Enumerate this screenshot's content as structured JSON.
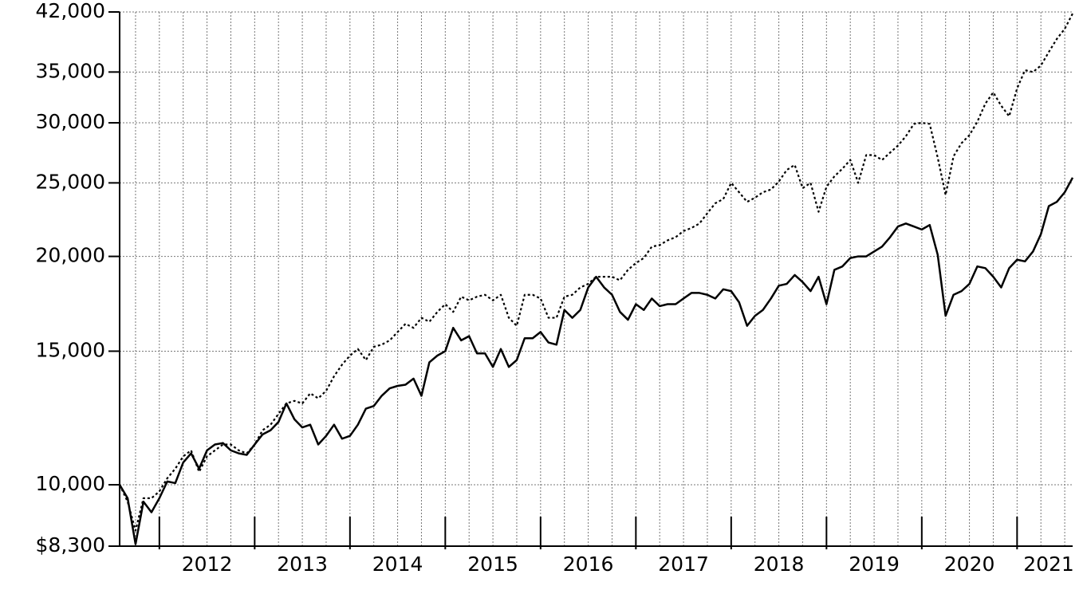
{
  "chart_data": {
    "type": "line",
    "yscale": "log",
    "grid": true,
    "x": [
      2011.583,
      2011.667,
      2011.75,
      2011.833,
      2011.917,
      2012,
      2012.083,
      2012.167,
      2012.25,
      2012.333,
      2012.417,
      2012.5,
      2012.583,
      2012.667,
      2012.75,
      2012.833,
      2012.917,
      2013,
      2013.083,
      2013.167,
      2013.25,
      2013.333,
      2013.417,
      2013.5,
      2013.583,
      2013.667,
      2013.75,
      2013.833,
      2013.917,
      2014,
      2014.083,
      2014.167,
      2014.25,
      2014.333,
      2014.417,
      2014.5,
      2014.583,
      2014.667,
      2014.75,
      2014.833,
      2014.917,
      2015,
      2015.083,
      2015.167,
      2015.25,
      2015.333,
      2015.417,
      2015.5,
      2015.583,
      2015.667,
      2015.75,
      2015.833,
      2015.917,
      2016,
      2016.083,
      2016.167,
      2016.25,
      2016.333,
      2016.417,
      2016.5,
      2016.583,
      2016.667,
      2016.75,
      2016.833,
      2016.917,
      2017,
      2017.083,
      2017.167,
      2017.25,
      2017.333,
      2017.417,
      2017.5,
      2017.583,
      2017.667,
      2017.75,
      2017.833,
      2017.917,
      2018,
      2018.083,
      2018.167,
      2018.25,
      2018.333,
      2018.417,
      2018.5,
      2018.583,
      2018.667,
      2018.75,
      2018.833,
      2018.917,
      2019,
      2019.083,
      2019.167,
      2019.25,
      2019.333,
      2019.417,
      2019.5,
      2019.583,
      2019.667,
      2019.75,
      2019.833,
      2019.917,
      2020,
      2020.083,
      2020.167,
      2020.25,
      2020.333,
      2020.417,
      2020.5,
      2020.583,
      2020.667,
      2020.75,
      2020.833,
      2020.917,
      2021,
      2021.083,
      2021.167,
      2021.25,
      2021.333,
      2021.417,
      2021.5,
      2021.583
    ],
    "series": [
      {
        "color": "#000000",
        "dash": "solid",
        "values": [
          10000,
          9600,
          8350,
          9500,
          9200,
          9600,
          10100,
          10050,
          10700,
          11000,
          10500,
          11100,
          11300,
          11350,
          11100,
          11000,
          10950,
          11300,
          11650,
          11800,
          12100,
          12800,
          12200,
          11900,
          12000,
          11300,
          11600,
          12000,
          11500,
          11600,
          12000,
          12600,
          12700,
          13100,
          13400,
          13500,
          13550,
          13800,
          13100,
          14500,
          14800,
          15000,
          16100,
          15500,
          15700,
          14900,
          14900,
          14300,
          15100,
          14300,
          14600,
          15600,
          15600,
          15900,
          15400,
          15300,
          17000,
          16600,
          17000,
          18200,
          18800,
          18200,
          17800,
          16900,
          16500,
          17300,
          17000,
          17600,
          17200,
          17300,
          17300,
          17600,
          17900,
          17900,
          17800,
          17600,
          18100,
          18000,
          17400,
          16200,
          16700,
          17000,
          17600,
          18300,
          18400,
          18900,
          18500,
          18000,
          18800,
          17300,
          19200,
          19400,
          19900,
          20000,
          20000,
          20300,
          20600,
          21200,
          21900,
          22100,
          21900,
          21700,
          22000,
          20100,
          16700,
          17800,
          18000,
          18400,
          19400,
          19300,
          18800,
          18200,
          19300,
          19800,
          19700,
          20300,
          21400,
          23300,
          23600,
          24300,
          25400
        ]
      },
      {
        "color": "#000000",
        "dash": "dotted",
        "values": [
          10000,
          9500,
          8700,
          9600,
          9600,
          9800,
          10200,
          10500,
          10900,
          11100,
          10400,
          10900,
          11100,
          11300,
          11300,
          11100,
          11000,
          11300,
          11800,
          12000,
          12400,
          12800,
          12900,
          12800,
          13200,
          13000,
          13300,
          13900,
          14400,
          14800,
          15100,
          14600,
          15200,
          15300,
          15500,
          15900,
          16300,
          16100,
          16600,
          16400,
          16900,
          17300,
          16900,
          17700,
          17500,
          17700,
          17800,
          17500,
          17800,
          16600,
          16200,
          17800,
          17800,
          17600,
          16600,
          16600,
          17700,
          17800,
          18200,
          18400,
          18800,
          18800,
          18800,
          18600,
          19200,
          19600,
          19900,
          20600,
          20700,
          21000,
          21200,
          21600,
          21800,
          22100,
          22800,
          23500,
          23800,
          25000,
          24300,
          23600,
          23900,
          24300,
          24500,
          25100,
          26000,
          26400,
          24600,
          25000,
          22900,
          24700,
          25500,
          26100,
          26800,
          25000,
          27200,
          27200,
          26800,
          27400,
          28000,
          28800,
          29900,
          30000,
          29900,
          27000,
          24100,
          27100,
          28200,
          28900,
          30100,
          31800,
          32900,
          31600,
          30600,
          33300,
          35200,
          35000,
          35700,
          37200,
          38700,
          39900,
          41800
        ]
      }
    ],
    "xlim": [
      2011.583,
      2021.583
    ],
    "xticks": [
      2012,
      2013,
      2014,
      2015,
      2016,
      2017,
      2018,
      2019,
      2020,
      2021
    ],
    "ylim": [
      8300,
      42000
    ],
    "yticks": [
      {
        "value": 8300,
        "label": "$8,300"
      },
      {
        "value": 10000,
        "label": "10,000"
      },
      {
        "value": 15000,
        "label": "15,000"
      },
      {
        "value": 20000,
        "label": "20,000"
      },
      {
        "value": 25000,
        "label": "25,000"
      },
      {
        "value": 30000,
        "label": "30,000"
      },
      {
        "value": 35000,
        "label": "35,000"
      },
      {
        "value": 42000,
        "label": "42,000"
      }
    ]
  }
}
